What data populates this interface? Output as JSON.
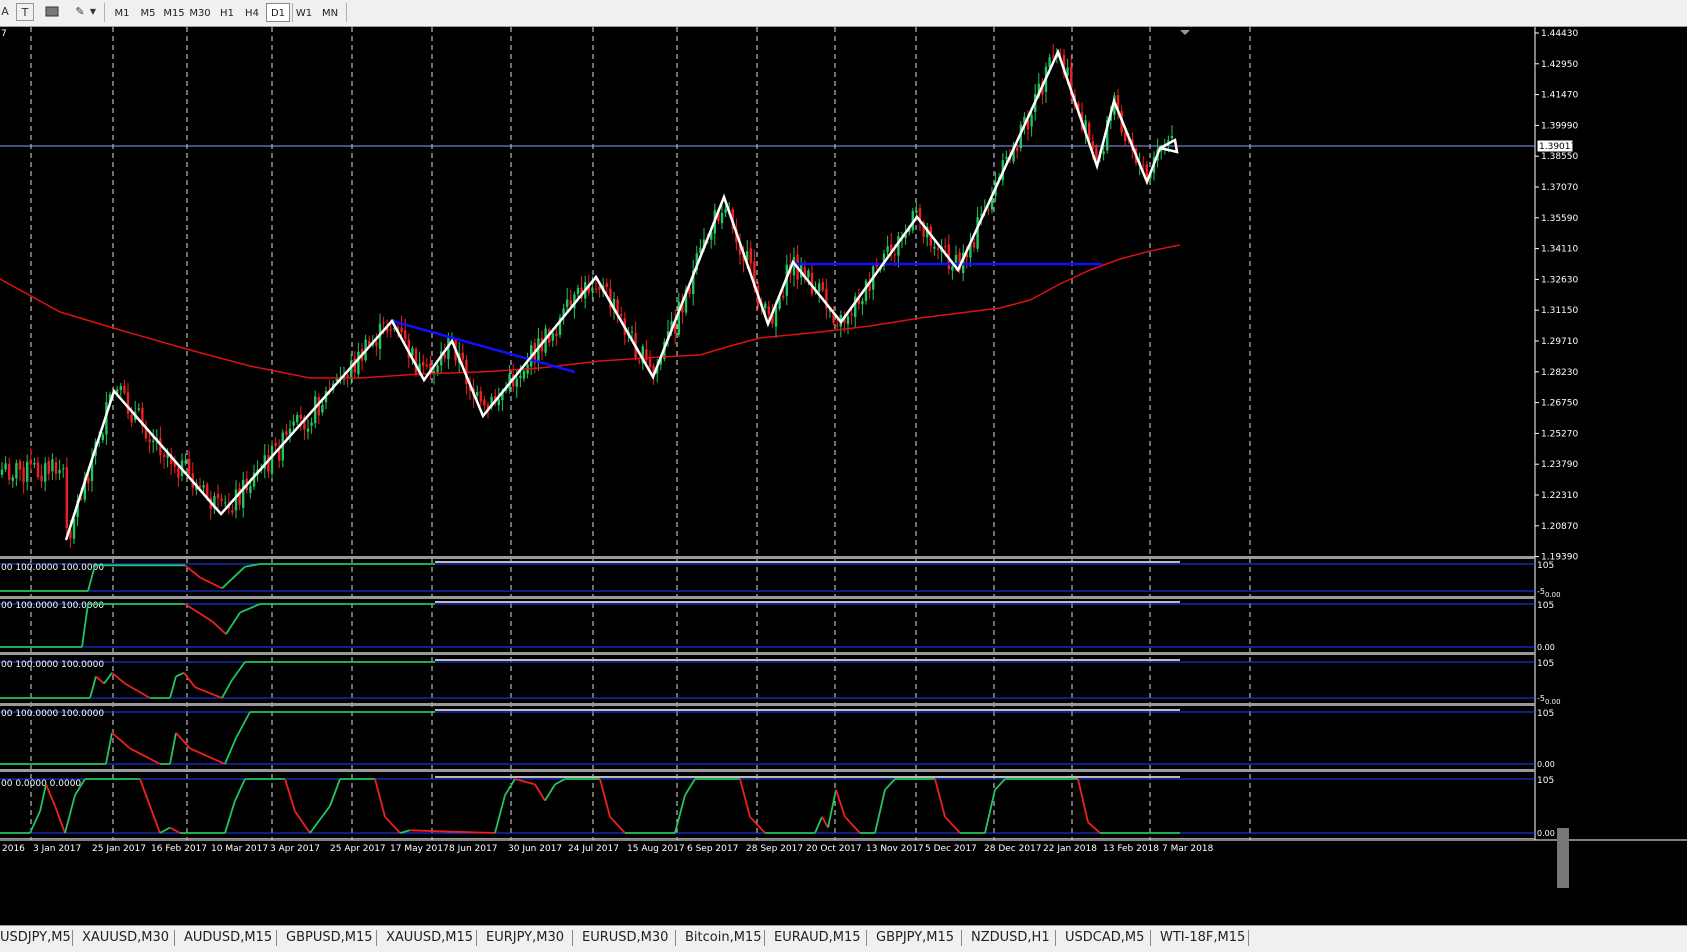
{
  "toolbar": {
    "icons": [
      "text-cursor-icon",
      "text-label-icon",
      "screen-icon",
      "draw-tools-icon",
      "dropdown-arrow-icon"
    ],
    "timeframes": [
      {
        "label": "M1",
        "active": false
      },
      {
        "label": "M5",
        "active": false
      },
      {
        "label": "M15",
        "active": false
      },
      {
        "label": "M30",
        "active": false
      },
      {
        "label": "H1",
        "active": false
      },
      {
        "label": "H4",
        "active": false
      },
      {
        "label": "D1",
        "active": true
      },
      {
        "label": "W1",
        "active": false
      },
      {
        "label": "MN",
        "active": false
      }
    ]
  },
  "chart": {
    "corner_label": "7",
    "current_price": "1.39017",
    "price_axis": [
      "1.44430",
      "1.42950",
      "1.41470",
      "1.39990",
      "1.38550",
      "1.37070",
      "1.35590",
      "1.34110",
      "1.32630",
      "1.31150",
      "1.29710",
      "1.28230",
      "1.26750",
      "1.25270",
      "1.23790",
      "1.22310",
      "1.20870",
      "1.19390"
    ],
    "date_axis": [
      "2016",
      "3 Jan 2017",
      "25 Jan 2017",
      "16 Feb 2017",
      "10 Mar 2017",
      "3 Apr 2017",
      "25 Apr 2017",
      "17 May 2017",
      "8 Jun 2017",
      "30 Jun 2017",
      "24 Jul 2017",
      "15 Aug 2017",
      "6 Sep 2017",
      "28 Sep 2017",
      "20 Oct 2017",
      "13 Nov 2017",
      "5 Dec 2017",
      "28 Dec 2017",
      "22 Jan 2018",
      "13 Feb 2018",
      "7 Mar 2018"
    ],
    "indicators": [
      {
        "header": "00 100.0000 100.0000",
        "top": "105",
        "bottom": "-5",
        "extra": "0.00"
      },
      {
        "header": "00 100.0000 100.0000",
        "top": "105",
        "bottom": "0.00",
        "extra": ""
      },
      {
        "header": "00 100.0000 100.0000",
        "top": "105",
        "bottom": "-5",
        "extra": "0.00"
      },
      {
        "header": "00 100.0000 100.0000",
        "top": "105",
        "bottom": "0.00",
        "extra": ""
      },
      {
        "header": "00 0.0000 0.0000",
        "top": "105",
        "bottom": "0.00",
        "extra": ""
      }
    ]
  },
  "tabs": [
    "USDJPY,M5",
    "XAUUSD,M30",
    "AUDUSD,M15",
    "GBPUSD,M15",
    "XAUUSD,M15",
    "EURJPY,M30",
    "EURUSD,M30",
    "Bitcoin,M15",
    "EURAUD,M15",
    "GBPJPY,M15",
    "NZDUSD,H1",
    "USDCAD,M5",
    "WTI-18F,M15"
  ],
  "colors": {
    "bull": "#22c55e",
    "bear": "#ef2020",
    "zigzag": "#ffffff",
    "trend": "#1010ff",
    "ma": "#dd1111",
    "grid": "#e0e0e0"
  }
}
